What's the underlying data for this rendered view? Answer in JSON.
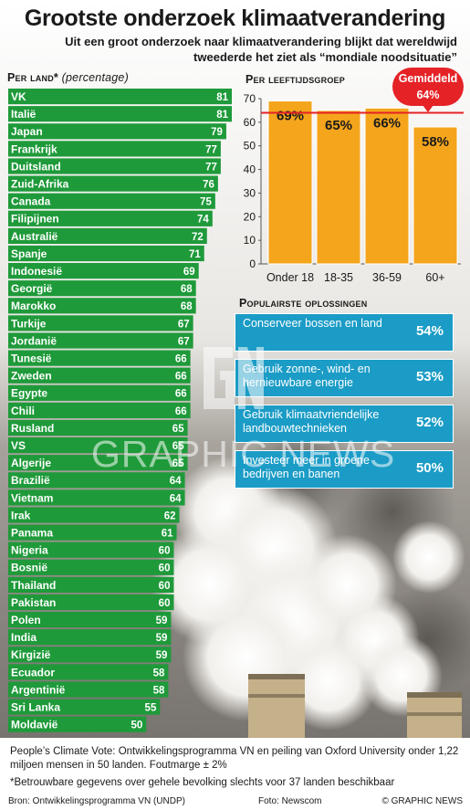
{
  "title": "Grootste onderzoek klimaatverandering",
  "subtitle_line1": "Uit een groot onderzoek naar klimaatverandering blijkt dat wereldwijd",
  "subtitle_line2": "tweederde het ziet als “mondiale noodsituatie”",
  "country_heading": "Per land*",
  "country_heading_unit": "(percentage)",
  "age_heading": "Per leeftijdsgroep",
  "average_label": "Gemiddeld",
  "average_value": "64%",
  "solutions_heading": "Populairste oplossingen",
  "solutions": [
    {
      "label": "Conserveer bossen en land",
      "value": "54%"
    },
    {
      "label": "Gebruik zonne-, wind- en hernieuwbare energie",
      "value": "53%"
    },
    {
      "label": "Gebruik klimaatvriendelijke landbouwtechnieken",
      "value": "52%"
    },
    {
      "label": "Investeer meer in groene bedrijven en banen",
      "value": "50%"
    }
  ],
  "watermark": "GRAPHIC NEWS",
  "footer": {
    "note": "People’s Climate Vote: Ontwikkelingsprogramma VN en peiling van Oxford University onder 1,22 miljoen mensen in 50 landen. Foutmarge ± 2%",
    "footnote": "*Betrouwbare gegevens over gehele bevolking slechts voor 37 landen beschikbaar",
    "source": "Bron: Ontwikkelingsprogramma VN (UNDP)",
    "photo": "Foto: Newscom",
    "copyright": "© GRAPHIC NEWS"
  },
  "colors": {
    "green_bar": "#1f9a3a",
    "orange_bar": "#f4a51c",
    "average_line": "#e52226",
    "solution_box": "#1b9cc6"
  },
  "chart_data": [
    {
      "type": "bar",
      "orientation": "horizontal",
      "categories": [
        "VK",
        "Italië",
        "Japan",
        "Frankrijk",
        "Duitsland",
        "Zuid-Afrika",
        "Canada",
        "Filipijnen",
        "Australië",
        "Spanje",
        "Indonesië",
        "Georgië",
        "Marokko",
        "Turkije",
        "Jordanië",
        "Tunesië",
        "Zweden",
        "Egypte",
        "Chili",
        "Rusland",
        "VS",
        "Algerije",
        "Brazilië",
        "Vietnam",
        "Irak",
        "Panama",
        "Nigeria",
        "Bosnië",
        "Thailand",
        "Pakistan",
        "Polen",
        "India",
        "Kirgizië",
        "Ecuador",
        "Argentinië",
        "Sri Lanka",
        "Moldavië"
      ],
      "values": [
        81,
        81,
        79,
        77,
        77,
        76,
        75,
        74,
        72,
        71,
        69,
        68,
        68,
        67,
        67,
        66,
        66,
        66,
        66,
        65,
        65,
        65,
        64,
        64,
        62,
        61,
        60,
        60,
        60,
        60,
        59,
        59,
        59,
        58,
        58,
        55,
        50
      ]
    },
    {
      "type": "bar",
      "categories": [
        "Onder 18",
        "18-35",
        "36-59",
        "60+"
      ],
      "values": [
        69,
        65,
        66,
        58
      ],
      "value_labels": [
        "69%",
        "65%",
        "66%",
        "58%"
      ],
      "ylim": [
        0,
        70
      ],
      "yticks": [
        0,
        10,
        20,
        30,
        40,
        50,
        60,
        70
      ],
      "reference_line": 64
    }
  ]
}
